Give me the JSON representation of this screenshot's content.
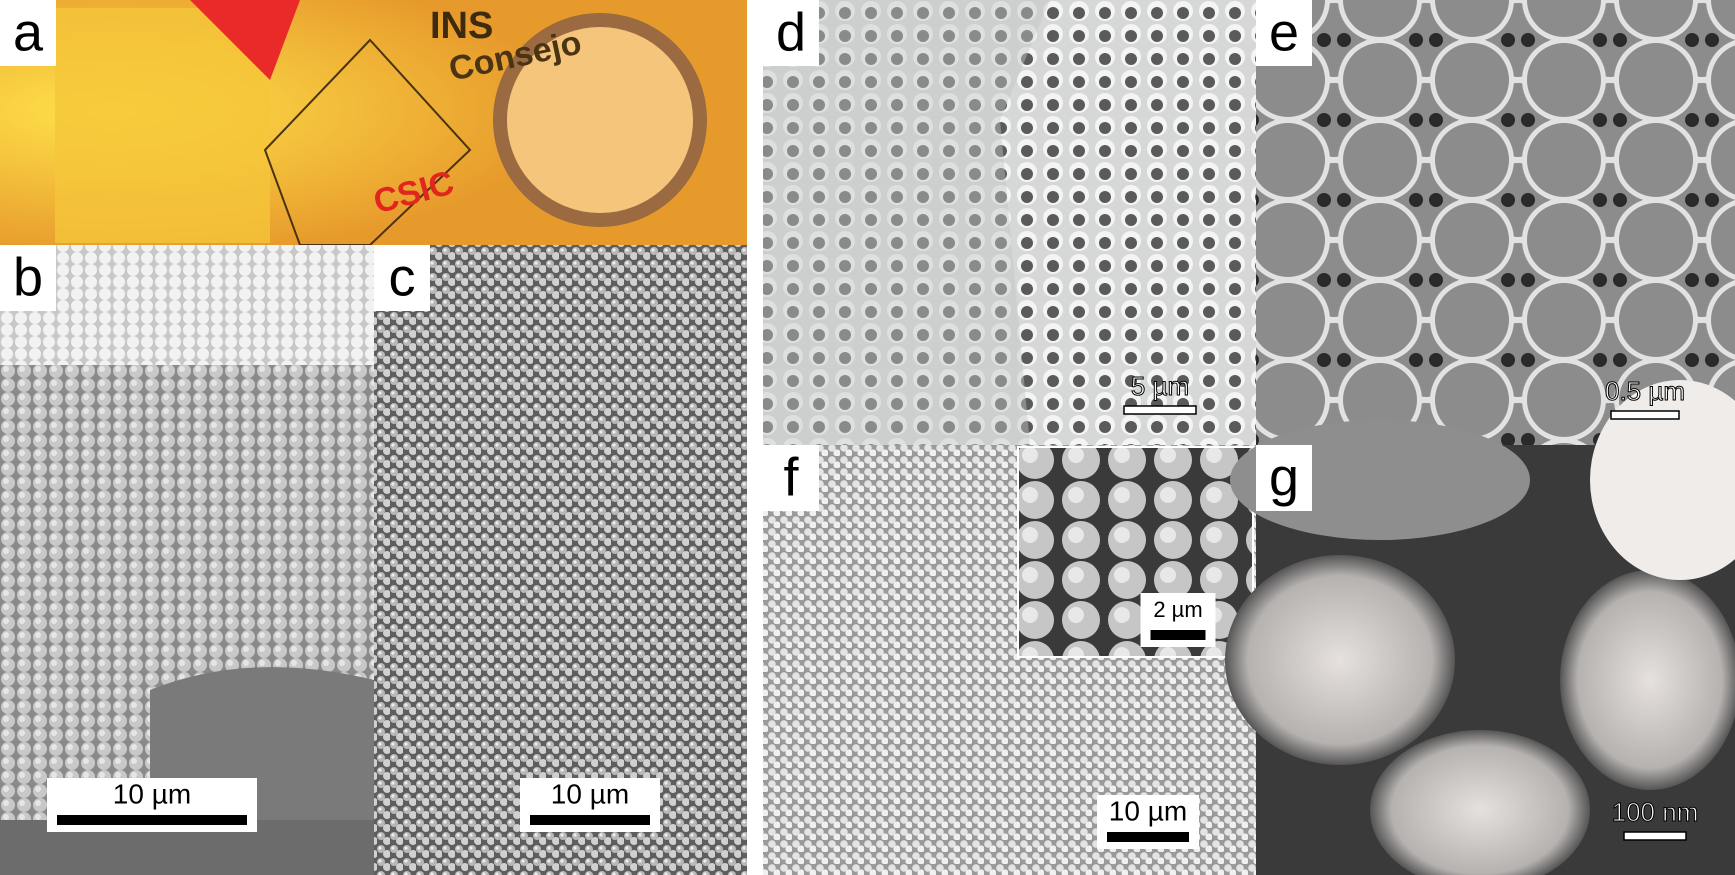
{
  "panels": [
    {
      "label": "a",
      "texts": [
        "INS",
        "Consejo",
        "CSIC"
      ]
    },
    {
      "label": "b",
      "scale_bar": "10 µm"
    },
    {
      "label": "c",
      "scale_bar": "10 µm"
    },
    {
      "label": "d",
      "scale_bar": "5 µm"
    },
    {
      "label": "e",
      "scale_bar": "0.5 µm"
    },
    {
      "label": "f",
      "scale_bar": "10 µm",
      "inset_scale_bar": "2 µm"
    },
    {
      "label": "g",
      "scale_bar": "100 nm"
    }
  ]
}
